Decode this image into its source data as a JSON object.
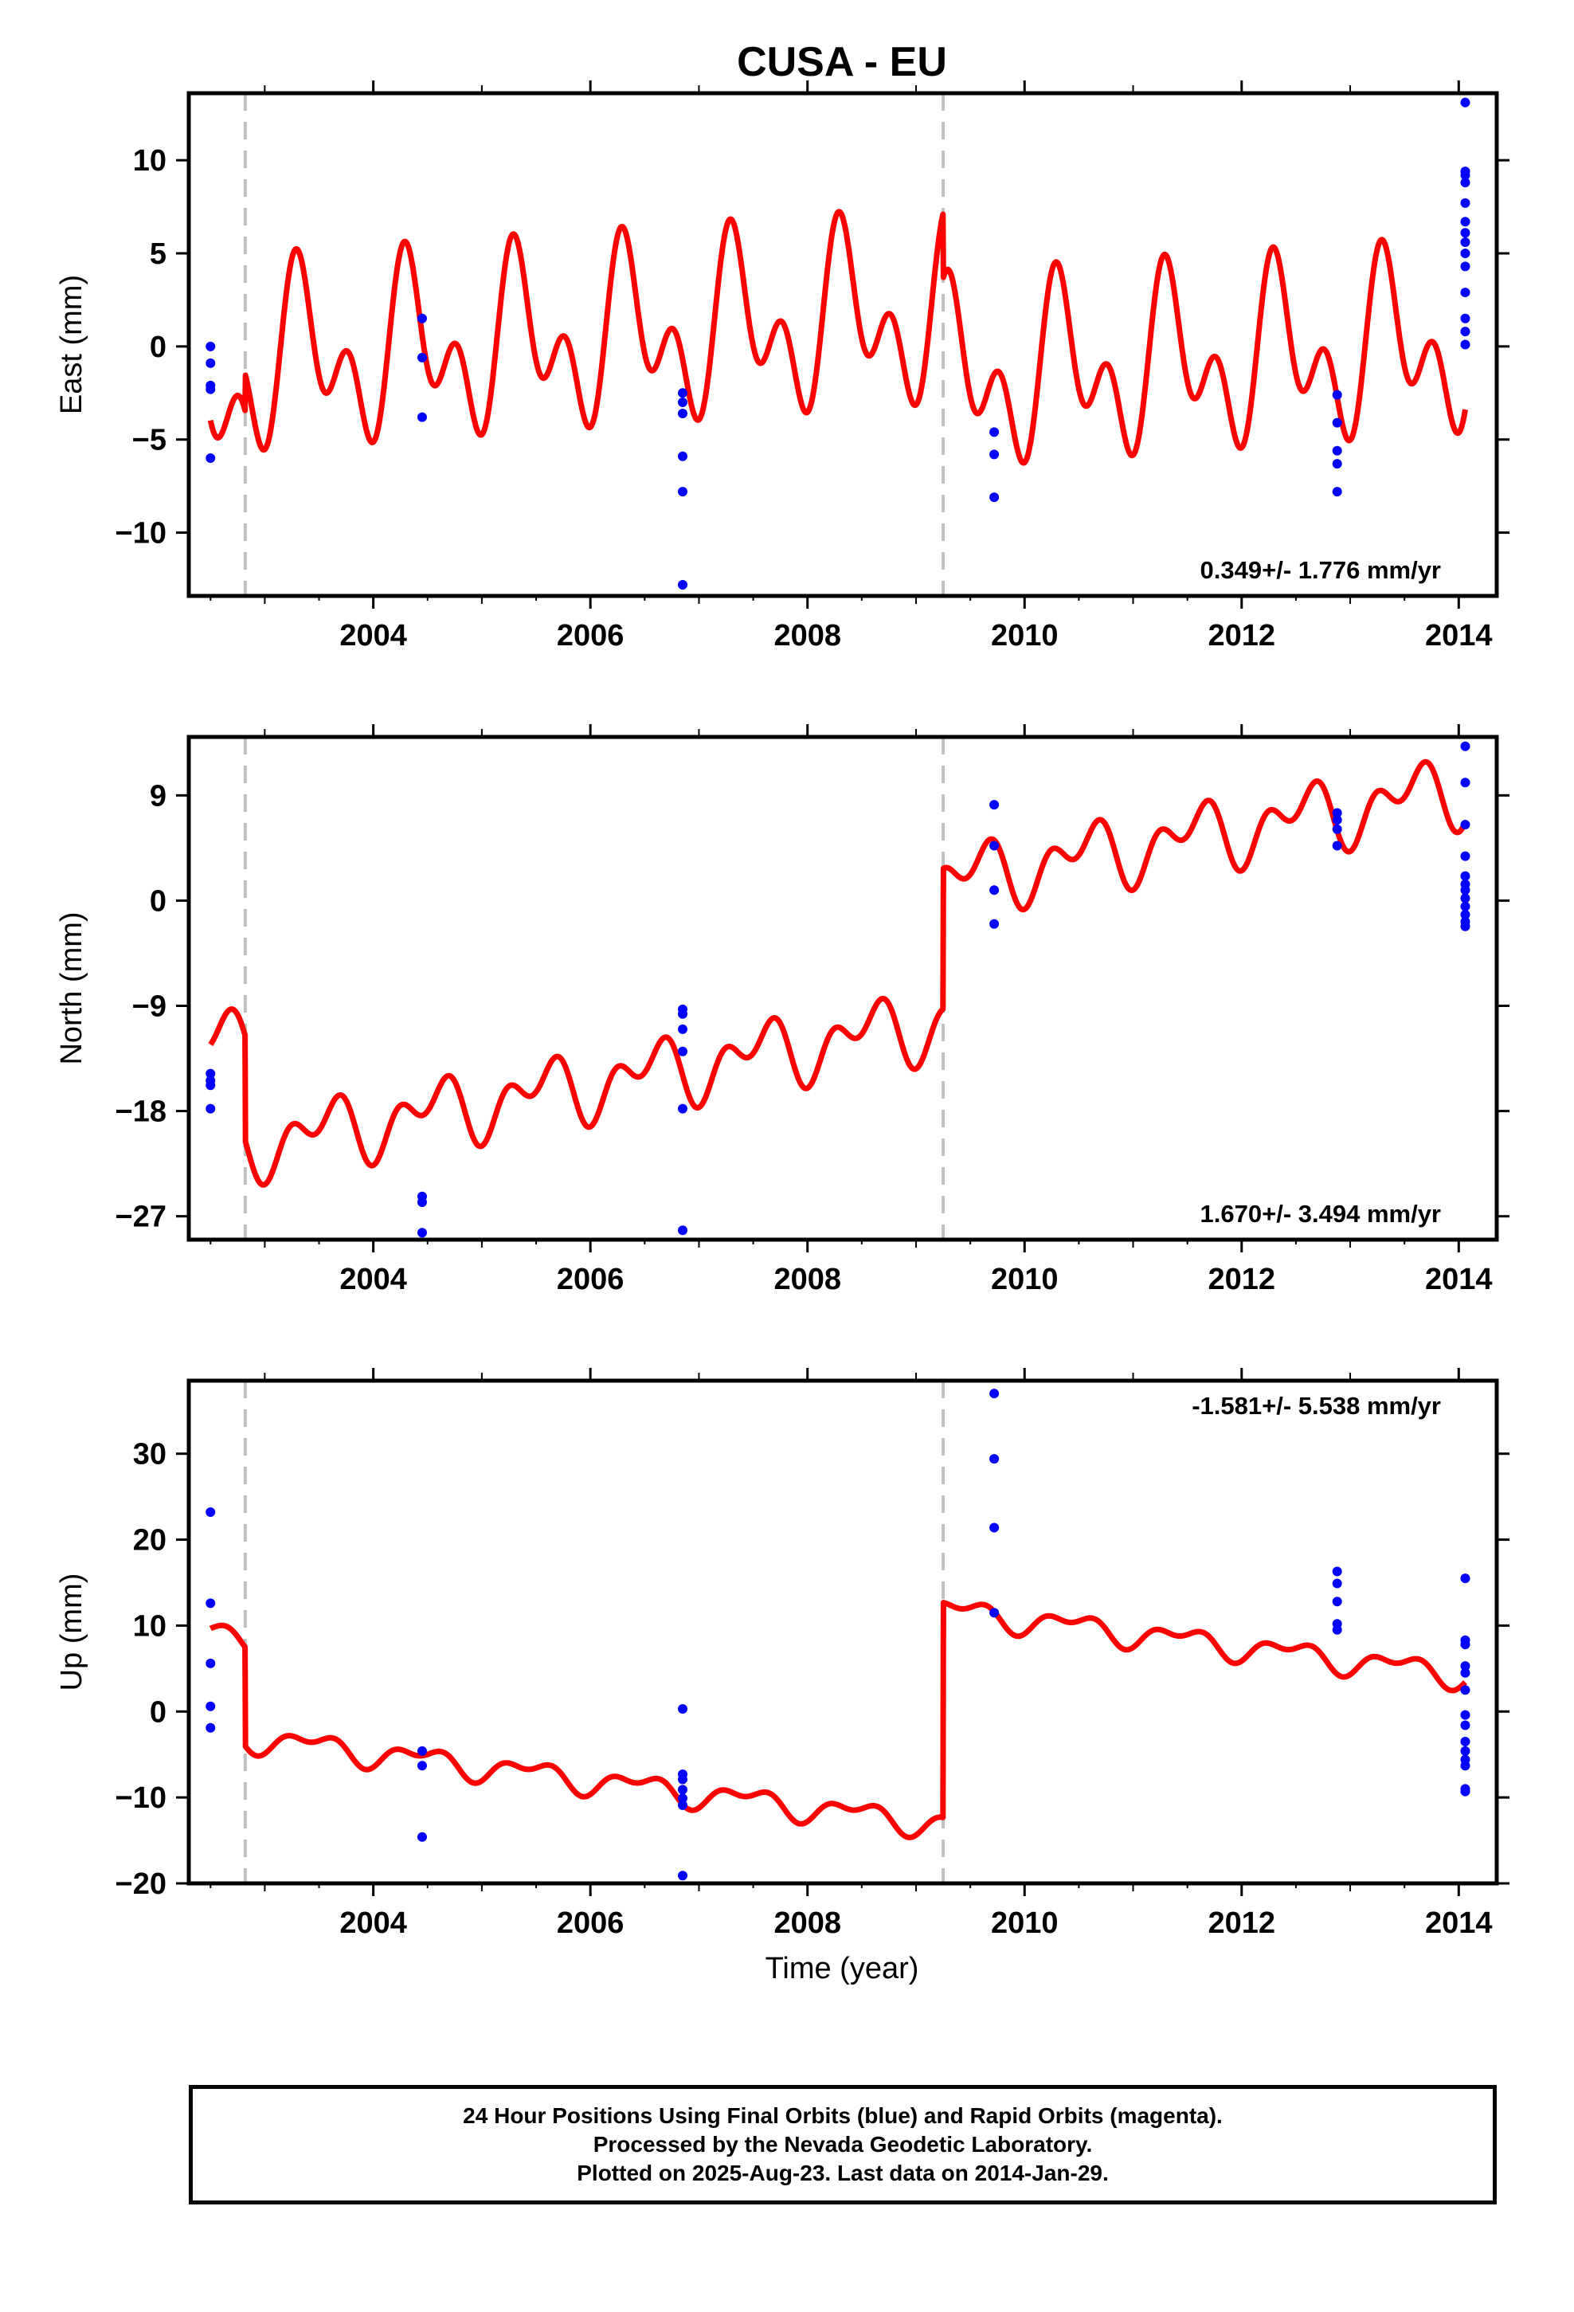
{
  "title": "CUSA - EU",
  "xlabel": "Time (year)",
  "footer": {
    "line1": "24 Hour Positions Using Final Orbits (blue) and Rapid Orbits (magenta).",
    "line2": "Processed by the Nevada Geodetic Laboratory.",
    "line3": "Plotted on 2025-Aug-23. Last data on 2014-Jan-29."
  },
  "colors": {
    "data_points": "#0000ff",
    "model_line": "#ff0000",
    "break_lines": "#c0c0c0",
    "frame": "#000000"
  },
  "chart_data": [
    {
      "type": "scatter",
      "component": "East",
      "ylabel": "East (mm)",
      "xlim": [
        2002.3,
        2014.35
      ],
      "ylim": [
        -13.4,
        13.6
      ],
      "xticks": [
        2004,
        2006,
        2008,
        2010,
        2012,
        2014
      ],
      "yticks": [
        -10,
        -5,
        0,
        5,
        10
      ],
      "rate_label": "0.349+/- 1.776 mm/yr",
      "rate_label_position": "bottom-right",
      "breaks": [
        2002.82,
        2009.25
      ],
      "model": {
        "offset0": -3.0,
        "rate": 0.4,
        "amp_annual": 3.2,
        "phase_annual": 0.1,
        "amp_semiannual": 3.0,
        "phase_semiannual": 0.15,
        "jumps": [
          {
            "t": 2002.82,
            "dy": 2.0
          },
          {
            "t": 2009.25,
            "dy": -3.5
          }
        ]
      },
      "points": [
        [
          2002.5,
          0.0
        ],
        [
          2002.5,
          -0.9
        ],
        [
          2002.5,
          -2.1
        ],
        [
          2002.5,
          -2.3
        ],
        [
          2002.5,
          -6.0
        ],
        [
          2004.45,
          1.5
        ],
        [
          2004.45,
          -0.6
        ],
        [
          2004.45,
          -3.8
        ],
        [
          2006.85,
          -2.5
        ],
        [
          2006.85,
          -3.0
        ],
        [
          2006.85,
          -3.6
        ],
        [
          2006.85,
          -5.9
        ],
        [
          2006.85,
          -7.8
        ],
        [
          2006.85,
          -12.8
        ],
        [
          2009.72,
          -4.6
        ],
        [
          2009.72,
          -5.8
        ],
        [
          2009.72,
          -8.1
        ],
        [
          2012.88,
          -2.6
        ],
        [
          2012.88,
          -4.1
        ],
        [
          2012.88,
          -5.6
        ],
        [
          2012.88,
          -6.3
        ],
        [
          2012.88,
          -7.8
        ],
        [
          2014.06,
          13.1
        ],
        [
          2014.06,
          9.4
        ],
        [
          2014.06,
          9.2
        ],
        [
          2014.06,
          8.8
        ],
        [
          2014.06,
          7.7
        ],
        [
          2014.06,
          6.7
        ],
        [
          2014.06,
          6.1
        ],
        [
          2014.06,
          5.6
        ],
        [
          2014.06,
          5.0
        ],
        [
          2014.06,
          4.3
        ],
        [
          2014.06,
          2.9
        ],
        [
          2014.06,
          1.5
        ],
        [
          2014.06,
          0.8
        ],
        [
          2014.06,
          0.1
        ]
      ]
    },
    {
      "type": "scatter",
      "component": "North",
      "ylabel": "North (mm)",
      "xlim": [
        2002.3,
        2014.35
      ],
      "ylim": [
        -29.0,
        14.0
      ],
      "xticks": [
        2004,
        2006,
        2008,
        2010,
        2012,
        2014
      ],
      "yticks": [
        -27,
        -18,
        -9,
        0,
        9
      ],
      "rate_label": "1.670+/- 3.494 mm/yr",
      "rate_label_position": "bottom-right",
      "breaks": [
        2002.82,
        2009.25
      ],
      "model": {
        "offset0": -12.5,
        "rate": 1.65,
        "amp_annual": 2.0,
        "phase_annual": 0.3,
        "amp_semiannual": 1.8,
        "phase_semiannual": 0.1,
        "jumps": [
          {
            "t": 2002.82,
            "dy": -9.0
          },
          {
            "t": 2009.25,
            "dy": 12.0
          }
        ]
      },
      "points": [
        [
          2002.5,
          -14.8
        ],
        [
          2002.5,
          -15.4
        ],
        [
          2002.5,
          -15.8
        ],
        [
          2002.5,
          -17.8
        ],
        [
          2004.45,
          -25.3
        ],
        [
          2004.45,
          -25.8
        ],
        [
          2004.45,
          -28.4
        ],
        [
          2006.85,
          -9.3
        ],
        [
          2006.85,
          -9.7
        ],
        [
          2006.85,
          -11.0
        ],
        [
          2006.85,
          -12.9
        ],
        [
          2006.85,
          -17.8
        ],
        [
          2006.85,
          -28.2
        ],
        [
          2009.72,
          8.2
        ],
        [
          2009.72,
          4.7
        ],
        [
          2009.72,
          0.9
        ],
        [
          2009.72,
          -2.0
        ],
        [
          2012.88,
          7.5
        ],
        [
          2012.88,
          6.9
        ],
        [
          2012.88,
          6.1
        ],
        [
          2012.88,
          4.7
        ],
        [
          2014.06,
          13.2
        ],
        [
          2014.06,
          10.1
        ],
        [
          2014.06,
          6.5
        ],
        [
          2014.06,
          3.8
        ],
        [
          2014.06,
          2.1
        ],
        [
          2014.06,
          1.4
        ],
        [
          2014.06,
          0.9
        ],
        [
          2014.06,
          0.2
        ],
        [
          2014.06,
          -0.5
        ],
        [
          2014.06,
          -1.2
        ],
        [
          2014.06,
          -1.8
        ],
        [
          2014.06,
          -2.2
        ]
      ]
    },
    {
      "type": "scatter",
      "component": "Up",
      "ylabel": "Up (mm)",
      "xlim": [
        2002.3,
        2014.35
      ],
      "ylim": [
        -20.0,
        38.5
      ],
      "xticks": [
        2004,
        2006,
        2008,
        2010,
        2012,
        2014
      ],
      "yticks": [
        -20,
        -10,
        0,
        10,
        20,
        30
      ],
      "rate_label": "-1.581+/- 5.538 mm/yr",
      "rate_label_position": "top-right",
      "breaks": [
        2002.82,
        2009.25
      ],
      "model": {
        "offset0": 9.0,
        "rate": -1.58,
        "amp_annual": 1.2,
        "phase_annual": 0.2,
        "amp_semiannual": 0.8,
        "phase_semiannual": 0.05,
        "jumps": [
          {
            "t": 2002.82,
            "dy": -11.5
          },
          {
            "t": 2009.25,
            "dy": 25.0
          }
        ]
      },
      "points": [
        [
          2002.5,
          23.2
        ],
        [
          2002.5,
          12.6
        ],
        [
          2002.5,
          5.6
        ],
        [
          2002.5,
          0.6
        ],
        [
          2002.5,
          -1.9
        ],
        [
          2004.45,
          -4.6
        ],
        [
          2004.45,
          -6.3
        ],
        [
          2004.45,
          -14.6
        ],
        [
          2006.85,
          0.3
        ],
        [
          2006.85,
          -7.3
        ],
        [
          2006.85,
          -7.9
        ],
        [
          2006.85,
          -9.1
        ],
        [
          2006.85,
          -10.1
        ],
        [
          2006.85,
          -10.9
        ],
        [
          2006.85,
          -19.1
        ],
        [
          2009.72,
          37.0
        ],
        [
          2009.72,
          29.4
        ],
        [
          2009.72,
          21.4
        ],
        [
          2009.72,
          11.5
        ],
        [
          2012.88,
          16.3
        ],
        [
          2012.88,
          14.9
        ],
        [
          2012.88,
          12.8
        ],
        [
          2012.88,
          10.2
        ],
        [
          2012.88,
          9.5
        ],
        [
          2014.06,
          15.5
        ],
        [
          2014.06,
          8.3
        ],
        [
          2014.06,
          7.8
        ],
        [
          2014.06,
          5.3
        ],
        [
          2014.06,
          4.5
        ],
        [
          2014.06,
          2.5
        ],
        [
          2014.06,
          -0.4
        ],
        [
          2014.06,
          -1.6
        ],
        [
          2014.06,
          -3.5
        ],
        [
          2014.06,
          -4.6
        ],
        [
          2014.06,
          -5.6
        ],
        [
          2014.06,
          -6.3
        ],
        [
          2014.06,
          -9.0
        ],
        [
          2014.06,
          -9.3
        ]
      ]
    }
  ]
}
